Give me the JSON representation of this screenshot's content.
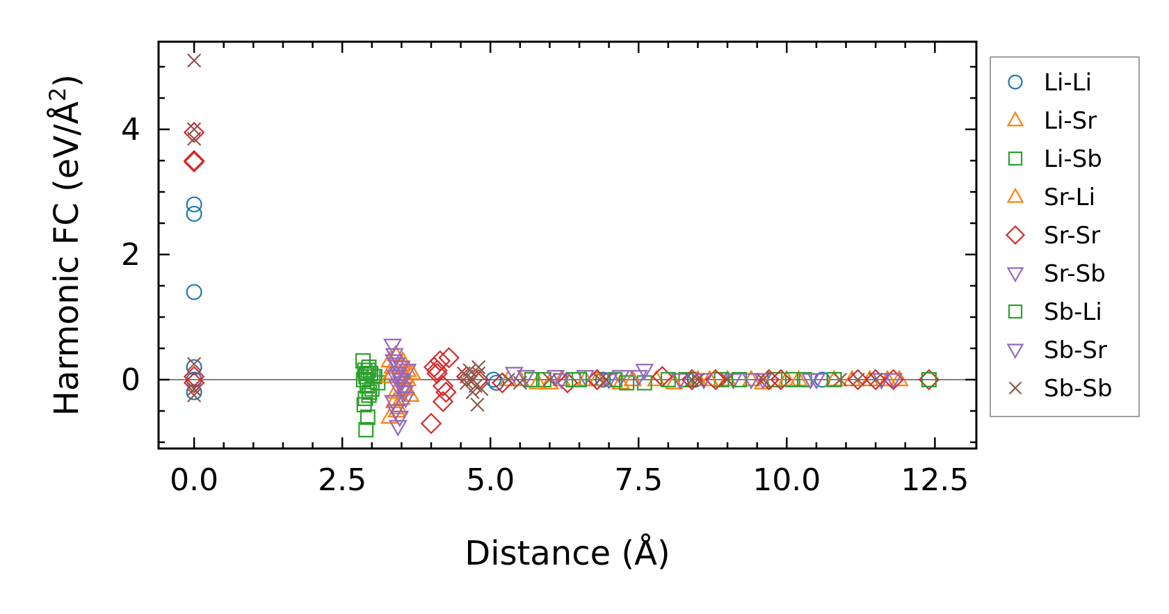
{
  "chart_data": {
    "type": "scatter",
    "title": "",
    "xlabel": "Distance (Å)",
    "ylabel": "Harmonic FC (eV/Å",
    "ylabel_sup": "2",
    "ylabel_tail": ")",
    "xlim": [
      -0.6,
      13.2
    ],
    "ylim": [
      -1.1,
      5.4
    ],
    "xticks": [
      0.0,
      2.5,
      5.0,
      7.5,
      10.0,
      12.5
    ],
    "xtick_labels": [
      "0.0",
      "2.5",
      "5.0",
      "7.5",
      "10.0",
      "12.5"
    ],
    "yticks": [
      0,
      2,
      4
    ],
    "ytick_labels": [
      "0",
      "2",
      "4"
    ],
    "hline": 0,
    "legend_position": "outside-right",
    "series": [
      {
        "name": "Li-Li",
        "marker": "circle",
        "color": "#1f77b4",
        "x": [
          0,
          0,
          0,
          0,
          0,
          0,
          5.05,
          5.1,
          6.9,
          8.45,
          10.6
        ],
        "y": [
          2.8,
          2.65,
          1.4,
          0.2,
          0.0,
          -0.2,
          0.0,
          -0.05,
          0.0,
          0.0,
          0.0
        ]
      },
      {
        "name": "Li-Sr",
        "marker": "triangle-up",
        "color": "#ff7f0e",
        "x": [
          3.3,
          3.35,
          3.4,
          3.45,
          3.5,
          3.55,
          3.6,
          3.65,
          3.3,
          3.4,
          3.5,
          3.6,
          3.35,
          3.55,
          5.5,
          5.8,
          6.2,
          6.8,
          7.2,
          7.8,
          8.5,
          9.0,
          9.6,
          10.2,
          10.8,
          11.4,
          11.9
        ],
        "y": [
          0.3,
          0.1,
          -0.2,
          -0.45,
          0.25,
          -0.1,
          0.15,
          -0.25,
          -0.6,
          0.4,
          -0.3,
          0.0,
          0.2,
          0.05,
          0.0,
          -0.05,
          0.0,
          0.0,
          -0.05,
          0.0,
          0.0,
          0.0,
          -0.05,
          0.0,
          0.0,
          0.0,
          0.0
        ]
      },
      {
        "name": "Li-Sb",
        "marker": "square",
        "color": "#2ca02c",
        "x": [
          2.85,
          2.88,
          2.9,
          2.92,
          2.95,
          2.87,
          2.93,
          2.98,
          3.0,
          3.05,
          3.1,
          2.9,
          2.95,
          5.9,
          6.4,
          7.1,
          7.6,
          8.3,
          8.9,
          9.8,
          10.3,
          10.8,
          12.4
        ],
        "y": [
          0.3,
          0.15,
          0.05,
          -0.1,
          -0.25,
          -0.4,
          -0.6,
          0.1,
          -0.15,
          0.05,
          -0.05,
          -0.8,
          0.2,
          0.0,
          0.0,
          0.0,
          -0.05,
          0.0,
          0.0,
          0.0,
          0.0,
          0.0,
          0.0
        ]
      },
      {
        "name": "Sr-Li",
        "marker": "triangle-up",
        "color": "#ff7f0e",
        "x": [
          3.3,
          3.38,
          3.48,
          3.58,
          3.68,
          3.42,
          3.52,
          5.3,
          6.0,
          6.6,
          7.4,
          8.1,
          8.7,
          9.4,
          10.0,
          11.1,
          11.7
        ],
        "y": [
          0.05,
          -0.35,
          0.2,
          -0.15,
          0.1,
          -0.5,
          0.3,
          0.0,
          -0.05,
          0.0,
          0.0,
          -0.05,
          0.0,
          0.0,
          0.0,
          0.0,
          0.0
        ]
      },
      {
        "name": "Sr-Sr",
        "marker": "diamond",
        "color": "#d62728",
        "x": [
          0,
          0,
          0,
          0,
          0,
          4.05,
          4.1,
          4.15,
          4.2,
          4.25,
          4.3,
          4.0,
          4.1,
          4.2,
          4.6,
          4.8,
          5.2,
          6.3,
          6.8,
          7.9,
          8.4,
          8.8,
          9.7,
          9.9,
          11.2,
          11.5,
          11.8,
          12.4
        ],
        "y": [
          3.95,
          3.5,
          3.48,
          0.05,
          -0.05,
          0.2,
          0.15,
          0.3,
          -0.1,
          -0.2,
          0.35,
          -0.7,
          0.1,
          -0.35,
          0.05,
          0.0,
          -0.05,
          -0.05,
          0.0,
          0.05,
          0.0,
          0.0,
          0.0,
          0.0,
          0.0,
          0.0,
          0.0,
          0.0
        ]
      },
      {
        "name": "Sr-Sb",
        "marker": "triangle-down",
        "color": "#9467bd",
        "x": [
          3.35,
          3.38,
          3.42,
          3.45,
          3.5,
          3.55,
          3.6,
          3.36,
          3.4,
          3.48,
          3.52,
          3.44,
          5.4,
          6.1,
          6.6,
          7.2,
          7.6,
          8.2,
          9.1,
          9.6,
          10.5,
          11.8
        ],
        "y": [
          0.55,
          0.4,
          0.25,
          0.1,
          -0.05,
          -0.2,
          0.15,
          -0.35,
          -0.5,
          0.0,
          -0.15,
          -0.75,
          0.1,
          0.05,
          0.05,
          0.05,
          0.15,
          0.0,
          0.0,
          0.0,
          0.0,
          0.0
        ]
      },
      {
        "name": "Sb-Li",
        "marker": "square",
        "color": "#2ca02c",
        "x": [
          2.86,
          2.91,
          2.96,
          3.02,
          2.89,
          2.94,
          5.7,
          6.5,
          7.3,
          8.0,
          9.2,
          10.1,
          12.4
        ],
        "y": [
          0.0,
          0.1,
          -0.2,
          0.05,
          -0.3,
          0.15,
          0.0,
          0.0,
          -0.05,
          0.0,
          0.0,
          0.0,
          0.0
        ]
      },
      {
        "name": "Sb-Sr",
        "marker": "triangle-down",
        "color": "#9467bd",
        "x": [
          3.37,
          3.43,
          3.5,
          3.57,
          3.4,
          3.47,
          5.6,
          6.2,
          7.0,
          7.5,
          8.6,
          9.4,
          10.4,
          11.6
        ],
        "y": [
          0.3,
          -0.1,
          0.2,
          -0.3,
          0.05,
          -0.6,
          0.05,
          0.0,
          0.0,
          0.05,
          0.0,
          0.0,
          0.0,
          0.0
        ]
      },
      {
        "name": "Sb-Sb",
        "marker": "x",
        "color": "#8c564b",
        "x": [
          0,
          0,
          0,
          0,
          0,
          0,
          4.55,
          4.6,
          4.65,
          4.7,
          4.75,
          4.8,
          4.85,
          4.6,
          4.7,
          4.8,
          4.78,
          5.3,
          5.5,
          6.0,
          6.85,
          6.95,
          8.4,
          8.5,
          9.0,
          9.6,
          10.9,
          11.2,
          11.5
        ],
        "y": [
          5.1,
          4.0,
          3.85,
          0.25,
          -0.15,
          -0.25,
          0.1,
          -0.05,
          0.15,
          0.0,
          -0.1,
          0.2,
          -0.15,
          0.05,
          -0.2,
          0.1,
          -0.4,
          0.0,
          -0.05,
          0.0,
          0.0,
          0.0,
          0.0,
          0.0,
          0.0,
          0.0,
          0.0,
          0.0,
          0.0
        ]
      }
    ]
  }
}
